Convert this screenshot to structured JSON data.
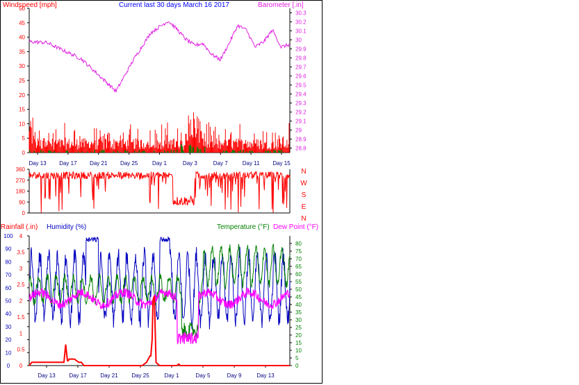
{
  "colors": {
    "wind": "#ff0000",
    "baro": "#e020e0",
    "gust": "#008000",
    "wdir": "#ff0000",
    "rain": "#ff0000",
    "humidity": "#0000c0",
    "temperature": "#008000",
    "dewpoint": "#ff00ff",
    "axis_blue": "#0000ff"
  },
  "header": {
    "wind_title": "Windspeed [mph]",
    "main_title": "Current last 30 days March 16 2017",
    "baro_title": "Barometer [.in]"
  },
  "bottom_header": {
    "rain_title": "Rainfall (.in)",
    "hum_title": "Humidity (%)",
    "temp_title": "Temperature (°F)",
    "dew_title": "Dew Point (°F)"
  },
  "chart_data": [
    {
      "type": "line",
      "name": "wind-barometer",
      "xlabels": [
        "Day 13",
        "Day 17",
        "Day 21",
        "Day 25",
        "Day 1",
        "Day 3",
        "Day 7",
        "Day 11",
        "Day 15"
      ],
      "wind_ticks": [
        "50",
        "45",
        "40",
        "35",
        "30",
        "25",
        "20",
        "15",
        "10",
        "5",
        "0"
      ],
      "baro_ticks": [
        "30.3",
        "30.2",
        "30.1",
        "30",
        "29.9",
        "29.8",
        "29.7",
        "29.6",
        "29.5",
        "29.4",
        "29.3",
        "29.2",
        "29.1",
        "29",
        "28.9",
        "28.8"
      ],
      "wind_ylim": [
        0,
        50
      ],
      "baro_ylim": [
        28.75,
        30.35
      ],
      "barometer": {
        "t": [
          0,
          2,
          4,
          6,
          8,
          10,
          12,
          14,
          16,
          17,
          18,
          19,
          20,
          21,
          22,
          23,
          24,
          25,
          26,
          27,
          28,
          29,
          30
        ],
        "values": [
          29.98,
          29.97,
          29.88,
          29.79,
          29.61,
          29.43,
          29.78,
          30.08,
          30.21,
          30.12,
          30.01,
          29.94,
          29.96,
          29.84,
          29.78,
          29.96,
          30.16,
          30.11,
          29.92,
          29.98,
          30.11,
          29.92,
          29.95
        ]
      },
      "wind_max": 16,
      "gust_max": 3
    },
    {
      "type": "line",
      "name": "wind-direction",
      "yticks": [
        "360",
        "270",
        "180",
        "90",
        "0"
      ],
      "compass": [
        "N",
        "W",
        "S",
        "E",
        "N"
      ],
      "ylim": [
        0,
        360
      ]
    },
    {
      "type": "line",
      "name": "rain-humidity-temperature",
      "xlabels": [
        "Day 13",
        "Day 17",
        "Day 21",
        "Day 25",
        "Day 1",
        "Day 5",
        "Day 9",
        "Day 13"
      ],
      "rain_ticks": [
        "4",
        "3.5",
        "3",
        "2.5",
        "2",
        "1.5",
        "1",
        "0.5",
        "0"
      ],
      "hum_ticks": [
        "100",
        "90",
        "80",
        "70",
        "60",
        "50",
        "40",
        "30",
        "20",
        "10",
        "0"
      ],
      "temp_ticks": [
        "80",
        "75",
        "70",
        "65",
        "60",
        "55",
        "50",
        "45",
        "40",
        "35",
        "30",
        "25",
        "20",
        "15",
        "10",
        "5",
        "0"
      ],
      "rain_ylim": [
        0,
        4
      ],
      "hum_ylim": [
        0,
        100
      ],
      "temp_ylim": [
        0,
        85
      ],
      "rainfall": {
        "t": [
          0,
          0.3,
          0.5,
          4,
          4.2,
          4.4,
          4.5,
          4.6,
          4.8,
          5.2,
          5.7,
          6,
          6.3,
          13,
          13.5,
          13.9,
          14,
          14.15,
          14.25,
          14.4,
          14.6,
          15,
          17,
          17.2,
          17.4,
          30
        ],
        "values": [
          0,
          0.1,
          0.1,
          0.1,
          0.65,
          0.15,
          0.15,
          0.2,
          0.2,
          0.2,
          0.1,
          0.1,
          0,
          0,
          0.1,
          0.3,
          0.3,
          0.8,
          2,
          2.15,
          0.1,
          0,
          0,
          0.05,
          0,
          0
        ]
      },
      "temperature_range": [
        10,
        85
      ],
      "dewpoint_range": [
        12,
        52
      ],
      "humidity_range": [
        15,
        100
      ]
    }
  ]
}
